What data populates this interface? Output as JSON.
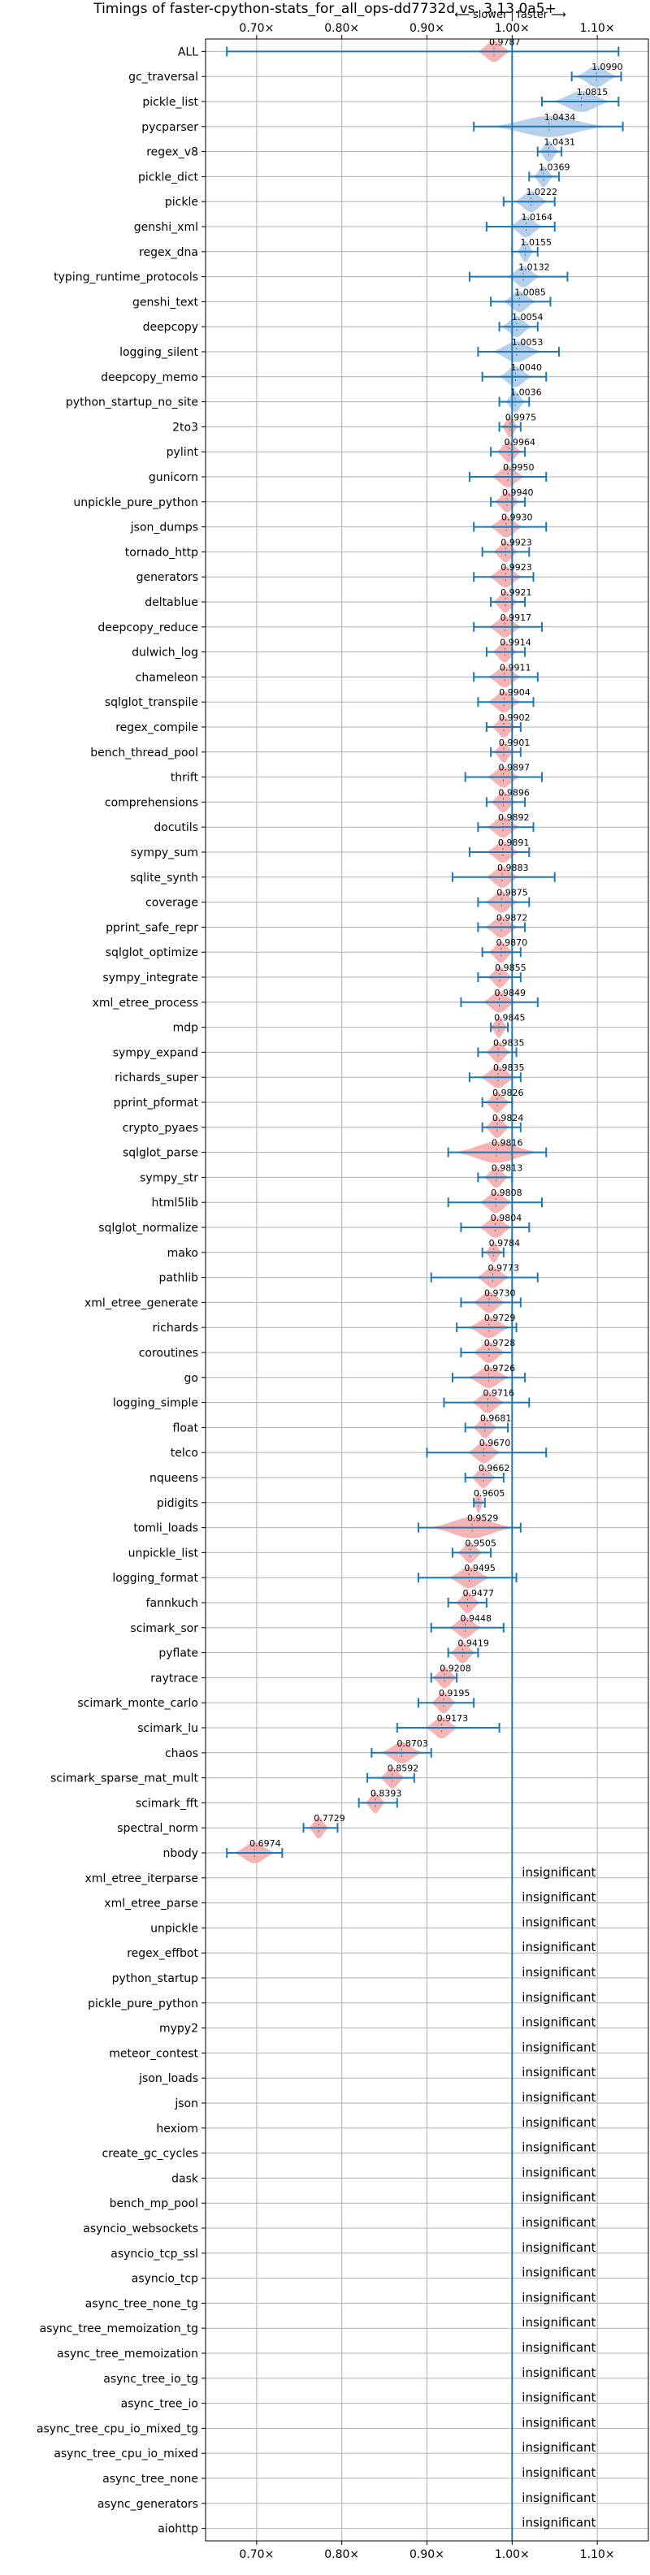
{
  "chart_data": {
    "type": "violin",
    "title": "Timings of faster-cpython-stats_for_all_ops-dd7732d vs. 3.13.0a5+",
    "annotation_slower": "⟵ slower",
    "annotation_faster": "faster ⟶",
    "x_ticks": [
      0.7,
      0.8,
      0.9,
      1.0,
      1.1
    ],
    "x_tick_labels": [
      "0.70×",
      "0.80×",
      "0.90×",
      "1.00×",
      "1.10×"
    ],
    "xlim": [
      0.64,
      1.16
    ],
    "reference_x": 1.0,
    "grid": true,
    "colors": {
      "faster": "#a9c8e8",
      "slower": "#f4a6a6",
      "accent": "#1f77b4"
    },
    "insignificant_label": "insignificant",
    "benchmarks": [
      {
        "name": "ALL",
        "value": 0.9787,
        "lo": 0.665,
        "hi": 1.125,
        "spread": 0.02,
        "significant": true
      },
      {
        "name": "gc_traversal",
        "value": 1.099,
        "lo": 1.07,
        "hi": 1.128,
        "spread": 0.025,
        "significant": true
      },
      {
        "name": "pickle_list",
        "value": 1.0815,
        "lo": 1.035,
        "hi": 1.125,
        "spread": 0.035,
        "significant": true
      },
      {
        "name": "pycparser",
        "value": 1.0434,
        "lo": 0.955,
        "hi": 1.13,
        "spread": 0.07,
        "significant": true
      },
      {
        "name": "regex_v8",
        "value": 1.0431,
        "lo": 1.03,
        "hi": 1.058,
        "spread": 0.012,
        "significant": true
      },
      {
        "name": "pickle_dict",
        "value": 1.0369,
        "lo": 1.02,
        "hi": 1.055,
        "spread": 0.012,
        "significant": true
      },
      {
        "name": "pickle",
        "value": 1.0222,
        "lo": 0.99,
        "hi": 1.05,
        "spread": 0.02,
        "significant": true
      },
      {
        "name": "genshi_xml",
        "value": 1.0164,
        "lo": 0.97,
        "hi": 1.05,
        "spread": 0.02,
        "significant": true
      },
      {
        "name": "regex_dna",
        "value": 1.0155,
        "lo": 1.0,
        "hi": 1.03,
        "spread": 0.01,
        "significant": true
      },
      {
        "name": "typing_runtime_protocols",
        "value": 1.0132,
        "lo": 0.95,
        "hi": 1.065,
        "spread": 0.02,
        "significant": true
      },
      {
        "name": "genshi_text",
        "value": 1.0085,
        "lo": 0.975,
        "hi": 1.045,
        "spread": 0.02,
        "significant": true
      },
      {
        "name": "deepcopy",
        "value": 1.0054,
        "lo": 0.985,
        "hi": 1.03,
        "spread": 0.018,
        "significant": true
      },
      {
        "name": "logging_silent",
        "value": 1.0053,
        "lo": 0.96,
        "hi": 1.055,
        "spread": 0.03,
        "significant": true
      },
      {
        "name": "deepcopy_memo",
        "value": 1.004,
        "lo": 0.965,
        "hi": 1.04,
        "spread": 0.02,
        "significant": true
      },
      {
        "name": "python_startup_no_site",
        "value": 1.0036,
        "lo": 0.985,
        "hi": 1.02,
        "spread": 0.012,
        "significant": true
      },
      {
        "name": "2to3",
        "value": 0.9975,
        "lo": 0.985,
        "hi": 1.01,
        "spread": 0.01,
        "significant": true
      },
      {
        "name": "pylint",
        "value": 0.9964,
        "lo": 0.975,
        "hi": 1.015,
        "spread": 0.015,
        "significant": true
      },
      {
        "name": "gunicorn",
        "value": 0.995,
        "lo": 0.95,
        "hi": 1.04,
        "spread": 0.02,
        "significant": true
      },
      {
        "name": "unpickle_pure_python",
        "value": 0.994,
        "lo": 0.975,
        "hi": 1.015,
        "spread": 0.015,
        "significant": true
      },
      {
        "name": "json_dumps",
        "value": 0.993,
        "lo": 0.955,
        "hi": 1.04,
        "spread": 0.02,
        "significant": true
      },
      {
        "name": "tornado_http",
        "value": 0.9923,
        "lo": 0.965,
        "hi": 1.02,
        "spread": 0.015,
        "significant": true
      },
      {
        "name": "generators",
        "value": 0.9923,
        "lo": 0.955,
        "hi": 1.025,
        "spread": 0.02,
        "significant": true
      },
      {
        "name": "deltablue",
        "value": 0.9921,
        "lo": 0.975,
        "hi": 1.015,
        "spread": 0.015,
        "significant": true
      },
      {
        "name": "deepcopy_reduce",
        "value": 0.9917,
        "lo": 0.955,
        "hi": 1.035,
        "spread": 0.02,
        "significant": true
      },
      {
        "name": "dulwich_log",
        "value": 0.9914,
        "lo": 0.97,
        "hi": 1.015,
        "spread": 0.015,
        "significant": true
      },
      {
        "name": "chameleon",
        "value": 0.9911,
        "lo": 0.955,
        "hi": 1.03,
        "spread": 0.02,
        "significant": true
      },
      {
        "name": "sqlglot_transpile",
        "value": 0.9904,
        "lo": 0.96,
        "hi": 1.025,
        "spread": 0.02,
        "significant": true
      },
      {
        "name": "regex_compile",
        "value": 0.9902,
        "lo": 0.97,
        "hi": 1.01,
        "spread": 0.015,
        "significant": true
      },
      {
        "name": "bench_thread_pool",
        "value": 0.9901,
        "lo": 0.975,
        "hi": 1.01,
        "spread": 0.012,
        "significant": true
      },
      {
        "name": "thrift",
        "value": 0.9897,
        "lo": 0.945,
        "hi": 1.035,
        "spread": 0.02,
        "significant": true
      },
      {
        "name": "comprehensions",
        "value": 0.9896,
        "lo": 0.97,
        "hi": 1.015,
        "spread": 0.015,
        "significant": true
      },
      {
        "name": "docutils",
        "value": 0.9892,
        "lo": 0.96,
        "hi": 1.025,
        "spread": 0.02,
        "significant": true
      },
      {
        "name": "sympy_sum",
        "value": 0.9891,
        "lo": 0.95,
        "hi": 1.02,
        "spread": 0.02,
        "significant": true
      },
      {
        "name": "sqlite_synth",
        "value": 0.9883,
        "lo": 0.93,
        "hi": 1.05,
        "spread": 0.02,
        "significant": true
      },
      {
        "name": "coverage",
        "value": 0.9875,
        "lo": 0.96,
        "hi": 1.02,
        "spread": 0.02,
        "significant": true
      },
      {
        "name": "pprint_safe_repr",
        "value": 0.9872,
        "lo": 0.96,
        "hi": 1.015,
        "spread": 0.02,
        "significant": true
      },
      {
        "name": "sqlglot_optimize",
        "value": 0.987,
        "lo": 0.965,
        "hi": 1.01,
        "spread": 0.015,
        "significant": true
      },
      {
        "name": "sympy_integrate",
        "value": 0.9855,
        "lo": 0.96,
        "hi": 1.01,
        "spread": 0.015,
        "significant": true
      },
      {
        "name": "xml_etree_process",
        "value": 0.9849,
        "lo": 0.94,
        "hi": 1.03,
        "spread": 0.02,
        "significant": true
      },
      {
        "name": "mdp",
        "value": 0.9845,
        "lo": 0.975,
        "hi": 0.995,
        "spread": 0.01,
        "significant": true
      },
      {
        "name": "sympy_expand",
        "value": 0.9835,
        "lo": 0.96,
        "hi": 1.005,
        "spread": 0.015,
        "significant": true
      },
      {
        "name": "richards_super",
        "value": 0.9835,
        "lo": 0.95,
        "hi": 1.01,
        "spread": 0.022,
        "significant": true
      },
      {
        "name": "pprint_pformat",
        "value": 0.9826,
        "lo": 0.965,
        "hi": 1.0,
        "spread": 0.015,
        "significant": true
      },
      {
        "name": "crypto_pyaes",
        "value": 0.9824,
        "lo": 0.965,
        "hi": 1.01,
        "spread": 0.015,
        "significant": true
      },
      {
        "name": "sqlglot_parse",
        "value": 0.9816,
        "lo": 0.925,
        "hi": 1.04,
        "spread": 0.05,
        "significant": true
      },
      {
        "name": "sympy_str",
        "value": 0.9813,
        "lo": 0.96,
        "hi": 1.0,
        "spread": 0.015,
        "significant": true
      },
      {
        "name": "html5lib",
        "value": 0.9808,
        "lo": 0.925,
        "hi": 1.035,
        "spread": 0.02,
        "significant": true
      },
      {
        "name": "sqlglot_normalize",
        "value": 0.9804,
        "lo": 0.94,
        "hi": 1.02,
        "spread": 0.02,
        "significant": true
      },
      {
        "name": "mako",
        "value": 0.9784,
        "lo": 0.965,
        "hi": 0.99,
        "spread": 0.01,
        "significant": true
      },
      {
        "name": "pathlib",
        "value": 0.9773,
        "lo": 0.905,
        "hi": 1.03,
        "spread": 0.02,
        "significant": true
      },
      {
        "name": "xml_etree_generate",
        "value": 0.973,
        "lo": 0.94,
        "hi": 1.01,
        "spread": 0.02,
        "significant": true
      },
      {
        "name": "richards",
        "value": 0.9729,
        "lo": 0.935,
        "hi": 1.005,
        "spread": 0.025,
        "significant": true
      },
      {
        "name": "coroutines",
        "value": 0.9728,
        "lo": 0.94,
        "hi": 1.0,
        "spread": 0.02,
        "significant": true
      },
      {
        "name": "go",
        "value": 0.9726,
        "lo": 0.93,
        "hi": 1.015,
        "spread": 0.025,
        "significant": true
      },
      {
        "name": "logging_simple",
        "value": 0.9716,
        "lo": 0.92,
        "hi": 1.02,
        "spread": 0.02,
        "significant": true
      },
      {
        "name": "float",
        "value": 0.9681,
        "lo": 0.945,
        "hi": 0.995,
        "spread": 0.015,
        "significant": true
      },
      {
        "name": "telco",
        "value": 0.967,
        "lo": 0.9,
        "hi": 1.04,
        "spread": 0.02,
        "significant": true
      },
      {
        "name": "nqueens",
        "value": 0.9662,
        "lo": 0.945,
        "hi": 0.99,
        "spread": 0.015,
        "significant": true
      },
      {
        "name": "pidigits",
        "value": 0.9605,
        "lo": 0.955,
        "hi": 0.968,
        "spread": 0.006,
        "significant": true
      },
      {
        "name": "tomli_loads",
        "value": 0.9529,
        "lo": 0.89,
        "hi": 1.01,
        "spread": 0.05,
        "significant": true
      },
      {
        "name": "unpickle_list",
        "value": 0.9505,
        "lo": 0.93,
        "hi": 0.975,
        "spread": 0.015,
        "significant": true
      },
      {
        "name": "logging_format",
        "value": 0.9495,
        "lo": 0.89,
        "hi": 1.005,
        "spread": 0.025,
        "significant": true
      },
      {
        "name": "fannkuch",
        "value": 0.9477,
        "lo": 0.925,
        "hi": 0.97,
        "spread": 0.015,
        "significant": true
      },
      {
        "name": "scimark_sor",
        "value": 0.9448,
        "lo": 0.905,
        "hi": 0.99,
        "spread": 0.02,
        "significant": true
      },
      {
        "name": "pyflate",
        "value": 0.9419,
        "lo": 0.925,
        "hi": 0.96,
        "spread": 0.015,
        "significant": true
      },
      {
        "name": "raytrace",
        "value": 0.9208,
        "lo": 0.905,
        "hi": 0.935,
        "spread": 0.015,
        "significant": true
      },
      {
        "name": "scimark_monte_carlo",
        "value": 0.9195,
        "lo": 0.89,
        "hi": 0.955,
        "spread": 0.015,
        "significant": true
      },
      {
        "name": "scimark_lu",
        "value": 0.9173,
        "lo": 0.865,
        "hi": 0.985,
        "spread": 0.02,
        "significant": true
      },
      {
        "name": "chaos",
        "value": 0.8703,
        "lo": 0.835,
        "hi": 0.905,
        "spread": 0.025,
        "significant": true
      },
      {
        "name": "scimark_sparse_mat_mult",
        "value": 0.8592,
        "lo": 0.83,
        "hi": 0.885,
        "spread": 0.015,
        "significant": true
      },
      {
        "name": "scimark_fft",
        "value": 0.8393,
        "lo": 0.82,
        "hi": 0.865,
        "spread": 0.012,
        "significant": true
      },
      {
        "name": "spectral_norm",
        "value": 0.7729,
        "lo": 0.755,
        "hi": 0.795,
        "spread": 0.012,
        "significant": true
      },
      {
        "name": "nbody",
        "value": 0.6974,
        "lo": 0.665,
        "hi": 0.73,
        "spread": 0.025,
        "significant": true
      },
      {
        "name": "xml_etree_iterparse",
        "significant": false
      },
      {
        "name": "xml_etree_parse",
        "significant": false
      },
      {
        "name": "unpickle",
        "significant": false
      },
      {
        "name": "regex_effbot",
        "significant": false
      },
      {
        "name": "python_startup",
        "significant": false
      },
      {
        "name": "pickle_pure_python",
        "significant": false
      },
      {
        "name": "mypy2",
        "significant": false
      },
      {
        "name": "meteor_contest",
        "significant": false
      },
      {
        "name": "json_loads",
        "significant": false
      },
      {
        "name": "json",
        "significant": false
      },
      {
        "name": "hexiom",
        "significant": false
      },
      {
        "name": "create_gc_cycles",
        "significant": false
      },
      {
        "name": "dask",
        "significant": false
      },
      {
        "name": "bench_mp_pool",
        "significant": false
      },
      {
        "name": "asyncio_websockets",
        "significant": false
      },
      {
        "name": "asyncio_tcp_ssl",
        "significant": false
      },
      {
        "name": "asyncio_tcp",
        "significant": false
      },
      {
        "name": "async_tree_none_tg",
        "significant": false
      },
      {
        "name": "async_tree_memoization_tg",
        "significant": false
      },
      {
        "name": "async_tree_memoization",
        "significant": false
      },
      {
        "name": "async_tree_io_tg",
        "significant": false
      },
      {
        "name": "async_tree_io",
        "significant": false
      },
      {
        "name": "async_tree_cpu_io_mixed_tg",
        "significant": false
      },
      {
        "name": "async_tree_cpu_io_mixed",
        "significant": false
      },
      {
        "name": "async_tree_none",
        "significant": false
      },
      {
        "name": "async_generators",
        "significant": false
      },
      {
        "name": "aiohttp",
        "significant": false
      }
    ]
  }
}
